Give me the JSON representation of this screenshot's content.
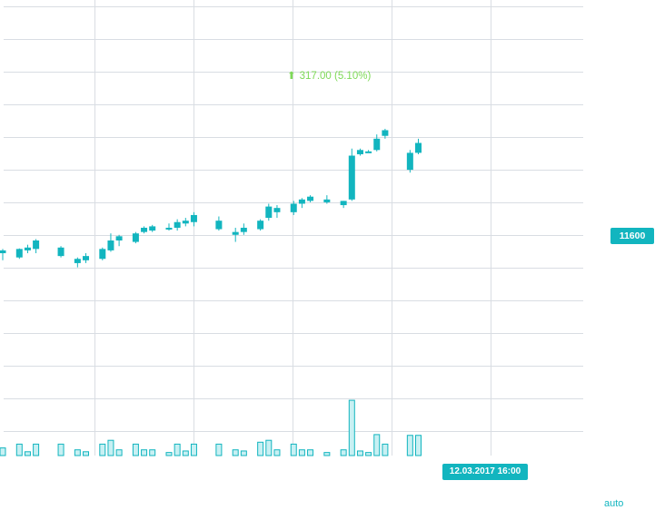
{
  "header": {
    "change_text": "317.00 (5.10%)",
    "change_direction": "up",
    "change_color": "#7ed957"
  },
  "price_scale": {
    "last_price_label": "11600",
    "badge_color": "#12b5bf"
  },
  "time_scale": {
    "crosshair_label": "12.03.2017 16:00"
  },
  "controls": {
    "auto_label": "auto"
  },
  "colors": {
    "candle": "#12b5bf",
    "volume_fill": "#c8f0f3",
    "volume_stroke": "#12b5bf",
    "grid": "#d9dde3"
  },
  "chart_data": {
    "type": "candlestick",
    "title": "",
    "price_range": [
      10750,
      12130
    ],
    "grid": true,
    "last_price": 11600,
    "candles": [
      {
        "i": 0,
        "o": 11395,
        "h": 11410,
        "l": 11370,
        "c": 11405
      },
      {
        "i": 2,
        "o": 11380,
        "h": 11412,
        "l": 11375,
        "c": 11410
      },
      {
        "i": 3,
        "o": 11405,
        "h": 11425,
        "l": 11395,
        "c": 11415
      },
      {
        "i": 4,
        "o": 11410,
        "h": 11445,
        "l": 11395,
        "c": 11440
      },
      {
        "i": 7,
        "o": 11385,
        "h": 11420,
        "l": 11380,
        "c": 11415
      },
      {
        "i": 9,
        "o": 11375,
        "h": 11380,
        "l": 11345,
        "c": 11360
      },
      {
        "i": 10,
        "o": 11370,
        "h": 11395,
        "l": 11360,
        "c": 11385
      },
      {
        "i": 12,
        "o": 11375,
        "h": 11415,
        "l": 11370,
        "c": 11410
      },
      {
        "i": 13,
        "o": 11405,
        "h": 11465,
        "l": 11400,
        "c": 11440
      },
      {
        "i": 14,
        "o": 11440,
        "h": 11460,
        "l": 11420,
        "c": 11455
      },
      {
        "i": 16,
        "o": 11435,
        "h": 11470,
        "l": 11430,
        "c": 11465
      },
      {
        "i": 17,
        "o": 11470,
        "h": 11490,
        "l": 11465,
        "c": 11485
      },
      {
        "i": 18,
        "o": 11475,
        "h": 11495,
        "l": 11470,
        "c": 11490
      },
      {
        "i": 20,
        "o": 11480,
        "h": 11500,
        "l": 11475,
        "c": 11485
      },
      {
        "i": 21,
        "o": 11485,
        "h": 11515,
        "l": 11475,
        "c": 11505
      },
      {
        "i": 22,
        "o": 11500,
        "h": 11520,
        "l": 11490,
        "c": 11510
      },
      {
        "i": 23,
        "o": 11505,
        "h": 11540,
        "l": 11490,
        "c": 11530
      },
      {
        "i": 26,
        "o": 11480,
        "h": 11525,
        "l": 11475,
        "c": 11510
      },
      {
        "i": 28,
        "o": 11470,
        "h": 11485,
        "l": 11435,
        "c": 11460
      },
      {
        "i": 29,
        "o": 11470,
        "h": 11500,
        "l": 11460,
        "c": 11485
      },
      {
        "i": 31,
        "o": 11480,
        "h": 11515,
        "l": 11475,
        "c": 11510
      },
      {
        "i": 32,
        "o": 11520,
        "h": 11570,
        "l": 11510,
        "c": 11560
      },
      {
        "i": 33,
        "o": 11540,
        "h": 11565,
        "l": 11520,
        "c": 11555
      },
      {
        "i": 35,
        "o": 11540,
        "h": 11580,
        "l": 11530,
        "c": 11570
      },
      {
        "i": 36,
        "o": 11570,
        "h": 11590,
        "l": 11555,
        "c": 11585
      },
      {
        "i": 37,
        "o": 11580,
        "h": 11600,
        "l": 11575,
        "c": 11595
      },
      {
        "i": 39,
        "o": 11575,
        "h": 11600,
        "l": 11570,
        "c": 11585
      },
      {
        "i": 41,
        "o": 11565,
        "h": 11580,
        "l": 11555,
        "c": 11580
      },
      {
        "i": 42,
        "o": 11585,
        "h": 11765,
        "l": 11580,
        "c": 11740
      },
      {
        "i": 43,
        "o": 11745,
        "h": 11765,
        "l": 11740,
        "c": 11760
      },
      {
        "i": 44,
        "o": 11750,
        "h": 11760,
        "l": 11750,
        "c": 11755
      },
      {
        "i": 45,
        "o": 11760,
        "h": 11815,
        "l": 11755,
        "c": 11800
      },
      {
        "i": 46,
        "o": 11810,
        "h": 11835,
        "l": 11800,
        "c": 11830
      },
      {
        "i": 49,
        "o": 11690,
        "h": 11760,
        "l": 11680,
        "c": 11750
      },
      {
        "i": 50,
        "o": 11750,
        "h": 11800,
        "l": 11745,
        "c": 11785
      }
    ],
    "volume": [
      {
        "i": 0,
        "v": 2
      },
      {
        "i": 2,
        "v": 3
      },
      {
        "i": 3,
        "v": 1
      },
      {
        "i": 4,
        "v": 3
      },
      {
        "i": 7,
        "v": 3
      },
      {
        "i": 9,
        "v": 1.5
      },
      {
        "i": 10,
        "v": 1
      },
      {
        "i": 12,
        "v": 3
      },
      {
        "i": 13,
        "v": 4
      },
      {
        "i": 14,
        "v": 1.5
      },
      {
        "i": 16,
        "v": 3
      },
      {
        "i": 17,
        "v": 1.5
      },
      {
        "i": 18,
        "v": 1.5
      },
      {
        "i": 20,
        "v": 0.8
      },
      {
        "i": 21,
        "v": 3
      },
      {
        "i": 22,
        "v": 1.2
      },
      {
        "i": 23,
        "v": 3
      },
      {
        "i": 26,
        "v": 3
      },
      {
        "i": 28,
        "v": 1.5
      },
      {
        "i": 29,
        "v": 1.2
      },
      {
        "i": 31,
        "v": 3.5
      },
      {
        "i": 32,
        "v": 4
      },
      {
        "i": 33,
        "v": 1.5
      },
      {
        "i": 35,
        "v": 3
      },
      {
        "i": 36,
        "v": 1.5
      },
      {
        "i": 37,
        "v": 1.5
      },
      {
        "i": 39,
        "v": 0.8
      },
      {
        "i": 41,
        "v": 1.5
      },
      {
        "i": 42,
        "v": 14.5
      },
      {
        "i": 43,
        "v": 1.2
      },
      {
        "i": 44,
        "v": 0.8
      },
      {
        "i": 45,
        "v": 5.5
      },
      {
        "i": 46,
        "v": 3
      },
      {
        "i": 49,
        "v": 5.3
      },
      {
        "i": 50,
        "v": 5.3
      }
    ]
  }
}
